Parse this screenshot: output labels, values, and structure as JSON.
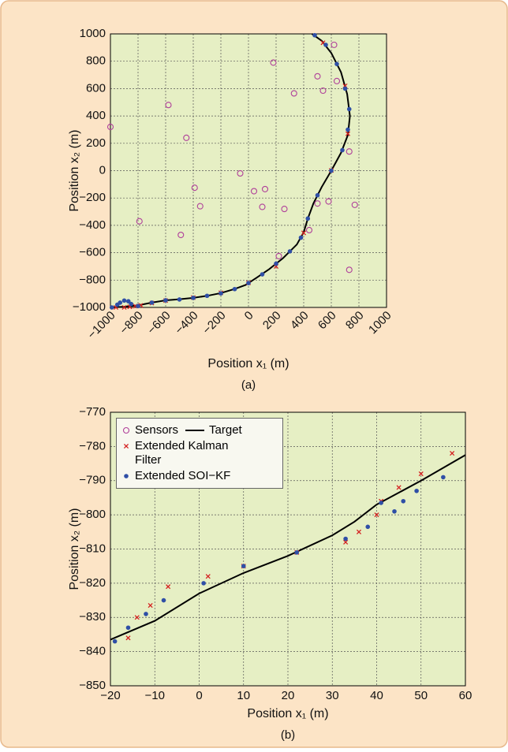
{
  "chart_data": [
    {
      "type": "line",
      "subplot_label": "(a)",
      "xlabel": "Position x₁ (m)",
      "ylabel": "Position x₂ (m)",
      "xlim": [
        -1000,
        1000
      ],
      "xticks": [
        {
          "value": -1000,
          "label": "−1000"
        },
        {
          "value": -800,
          "label": "−800"
        },
        {
          "value": -600,
          "label": "−600"
        },
        {
          "value": -400,
          "label": "−400"
        },
        {
          "value": -200,
          "label": "−200"
        },
        0,
        200,
        400,
        600,
        800,
        1000
      ],
      "ylim": [
        -1000,
        1000
      ],
      "yticks": [
        {
          "value": -1000,
          "label": "−1000"
        },
        {
          "value": -800,
          "label": "−800"
        },
        {
          "value": -600,
          "label": "−600"
        },
        {
          "value": -400,
          "label": "−400"
        },
        {
          "value": -200,
          "label": "−200"
        },
        0,
        200,
        400,
        600,
        800,
        1000
      ],
      "grid": true,
      "series": [
        {
          "kind": "scatter",
          "marker": "circle",
          "color": "#b0409a",
          "x": [
            -1000,
            -790,
            -580,
            -450,
            -390,
            -490,
            -60,
            -350,
            40,
            120,
            100,
            260,
            220,
            180,
            330,
            500,
            540,
            500,
            580,
            440,
            620,
            640,
            730,
            770,
            730
          ],
          "y": [
            320,
            -370,
            480,
            240,
            -125,
            -470,
            -20,
            -260,
            -150,
            -135,
            -265,
            -280,
            -625,
            790,
            565,
            690,
            585,
            -240,
            -225,
            -435,
            920,
            655,
            140,
            -250,
            -725
          ]
        },
        {
          "kind": "line",
          "color": "#000000",
          "x": [
            -1000,
            -900,
            -800,
            -700,
            -600,
            -500,
            -400,
            -300,
            -200,
            -100,
            -20,
            0,
            60,
            150,
            250,
            350,
            400,
            430,
            470,
            530,
            600,
            670,
            720,
            735,
            715,
            670,
            600,
            530,
            460
          ],
          "y": [
            -1000,
            -995,
            -985,
            -965,
            -948,
            -940,
            -930,
            -915,
            -895,
            -865,
            -836,
            -822,
            -782,
            -720,
            -640,
            -540,
            -450,
            -350,
            -240,
            -120,
            0,
            130,
            260,
            400,
            560,
            720,
            860,
            950,
            1000
          ]
        },
        {
          "kind": "scatter",
          "marker": "x",
          "color": "#d42020",
          "x": [
            -960,
            -900,
            -860,
            -820,
            -780,
            -700,
            -600,
            -400,
            -200,
            0,
            200,
            400,
            600,
            720,
            700,
            540
          ],
          "y": [
            -1000,
            -1000,
            -995,
            -990,
            -985,
            -968,
            -950,
            -928,
            -893,
            -820,
            -700,
            -455,
            2,
            270,
            620,
            935
          ]
        },
        {
          "kind": "scatter",
          "marker": "dot",
          "color": "#2f4fa6",
          "x": [
            -990,
            -950,
            -930,
            -900,
            -870,
            -850,
            -800,
            -700,
            -600,
            -500,
            -400,
            -300,
            -200,
            -100,
            0,
            100,
            200,
            300,
            380,
            430,
            500,
            600,
            680,
            720,
            730,
            700,
            640,
            560,
            480
          ],
          "y": [
            -1000,
            -980,
            -965,
            -950,
            -955,
            -975,
            -990,
            -965,
            -948,
            -942,
            -930,
            -915,
            -897,
            -866,
            -822,
            -758,
            -680,
            -590,
            -490,
            -350,
            -180,
            0,
            150,
            300,
            450,
            600,
            780,
            920,
            990
          ]
        }
      ]
    },
    {
      "type": "line",
      "subplot_label": "(b)",
      "xlabel": "Position x₁ (m)",
      "ylabel": "Position x₂ (m)",
      "xlim": [
        -20,
        60
      ],
      "xticks": [
        {
          "value": -20,
          "label": "−20"
        },
        {
          "value": -10,
          "label": "−10"
        },
        0,
        10,
        20,
        30,
        40,
        50,
        60
      ],
      "ylim": [
        -850,
        -770
      ],
      "yticks": [
        {
          "value": -850,
          "label": "−850"
        },
        {
          "value": -840,
          "label": "−840"
        },
        {
          "value": -830,
          "label": "−830"
        },
        {
          "value": -820,
          "label": "−820"
        },
        {
          "value": -810,
          "label": "−810"
        },
        {
          "value": -800,
          "label": "−800"
        },
        {
          "value": -790,
          "label": "−790"
        },
        {
          "value": -780,
          "label": "−780"
        },
        {
          "value": -770,
          "label": "−770"
        }
      ],
      "grid": true,
      "legend": "upper left",
      "series": [
        {
          "name": "Sensors",
          "kind": "scatter",
          "marker": "circle",
          "color": "#b0409a",
          "x": [],
          "y": []
        },
        {
          "name": "Target",
          "kind": "line",
          "color": "#000000",
          "x": [
            -20,
            -10,
            0,
            10,
            20,
            30,
            35,
            40,
            50,
            60
          ],
          "y": [
            -836.5,
            -831,
            -823,
            -817,
            -812,
            -806,
            -802,
            -797,
            -790,
            -782.5
          ]
        },
        {
          "name": "Extended Kalman Filter",
          "kind": "scatter",
          "marker": "x",
          "color": "#d42020",
          "x": [
            -16,
            -14,
            -11,
            -7,
            2,
            10,
            22,
            33,
            36,
            40,
            41,
            45,
            50,
            57
          ],
          "y": [
            -836,
            -830,
            -826.5,
            -821,
            -818,
            -815,
            -811,
            -808,
            -805,
            -800,
            -796,
            -792,
            -788,
            -782
          ]
        },
        {
          "name": "Extended SOI−KF",
          "kind": "scatter",
          "marker": "dot",
          "color": "#2f4fa6",
          "x": [
            -19,
            -16,
            -12,
            -8,
            1,
            10,
            22,
            33,
            38,
            41,
            44,
            46,
            49,
            55
          ],
          "y": [
            -837,
            -833,
            -829,
            -825,
            -820,
            -815,
            -811,
            -807,
            -803.5,
            -796.5,
            -799,
            -796,
            -793,
            -789
          ]
        }
      ]
    }
  ]
}
